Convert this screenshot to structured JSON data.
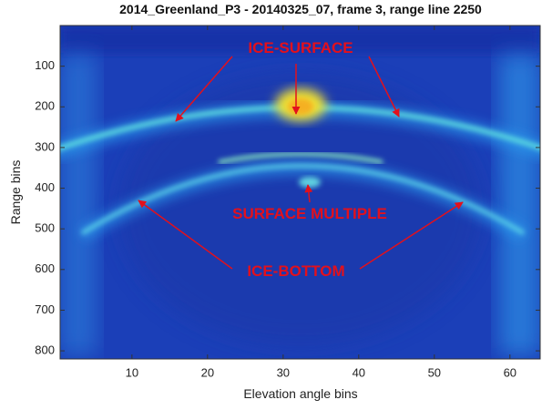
{
  "chart_data": {
    "type": "heatmap",
    "title": "2014_Greenland_P3 - 20140325_07, frame 3, range line 2250",
    "xlabel": "Elevation angle bins",
    "ylabel": "Range bins",
    "xlim": [
      0.5,
      64
    ],
    "ylim": [
      0,
      820
    ],
    "y_reversed": true,
    "xticks": [
      10,
      20,
      30,
      40,
      50,
      60
    ],
    "yticks": [
      100,
      200,
      300,
      400,
      500,
      600,
      700,
      800
    ],
    "annotations": [
      "ICE-SURFACE",
      "SURFACE MULTIPLE",
      "ICE-BOTTOM"
    ],
    "annotation_color": "#e3101c"
  }
}
